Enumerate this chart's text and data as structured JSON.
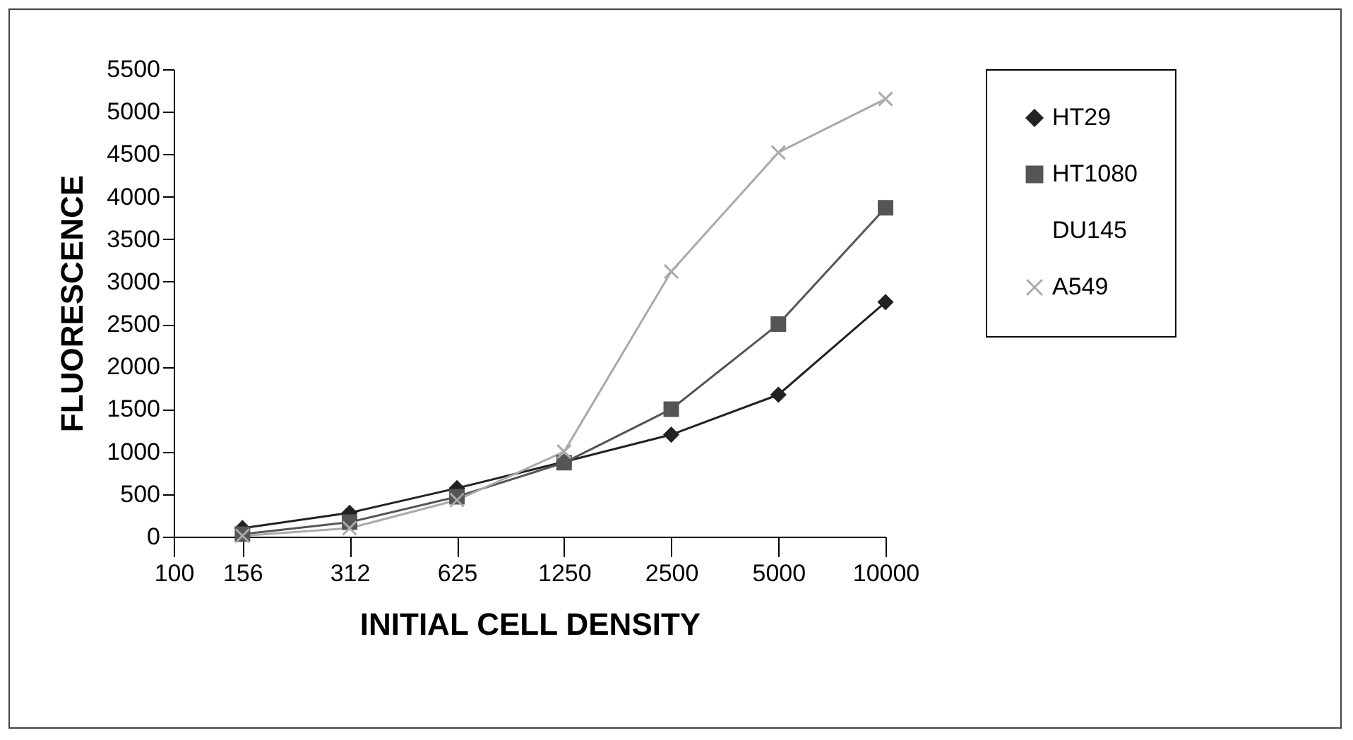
{
  "chart_data": {
    "type": "line",
    "xlabel": "INITIAL CELL DENSITY",
    "ylabel": "FLUORESCENCE",
    "log": "x",
    "x": [
      156,
      312,
      625,
      1250,
      2500,
      5000,
      10000
    ],
    "xlim": [
      100,
      10000
    ],
    "xticks": [
      100,
      156,
      312,
      625,
      1250,
      2500,
      5000,
      10000
    ],
    "ylim": [
      0,
      5500
    ],
    "yticks": [
      0,
      500,
      1000,
      1500,
      2000,
      2500,
      3000,
      3500,
      4000,
      4500,
      5000,
      5500
    ],
    "legend": "right",
    "series": [
      {
        "name": "HT29",
        "color": "#222222",
        "marker": "diamond",
        "values": [
          100,
          280,
          570,
          880,
          1200,
          1670,
          2760
        ]
      },
      {
        "name": "HT1080",
        "color": "#555555",
        "marker": "square",
        "values": [
          30,
          170,
          470,
          870,
          1500,
          2500,
          3870
        ]
      },
      {
        "name": "DU145",
        "marker": "none",
        "values": [
          null,
          null,
          null,
          null,
          null,
          null,
          null
        ]
      },
      {
        "name": "A549",
        "color": "#aaaaaa",
        "marker": "cross",
        "values": [
          10,
          100,
          430,
          1000,
          3120,
          4520,
          5150
        ]
      }
    ]
  }
}
